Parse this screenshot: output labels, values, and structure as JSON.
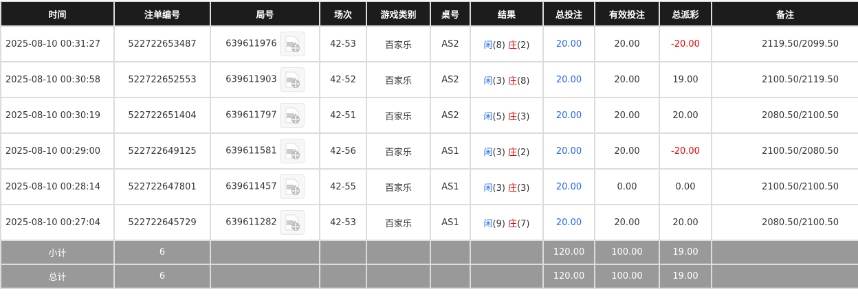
{
  "headers": [
    "时间",
    "注单编号",
    "局号",
    "场次",
    "游戏类别",
    "桌号",
    "结果",
    "总投注",
    "有效投注",
    "总派彩",
    "备注"
  ],
  "rows": [
    {
      "time": "2025-08-10 00:31:27",
      "order": "522722653487",
      "round": "639611976",
      "session": "42-53",
      "game": "百家乐",
      "table": "AS2",
      "player_label": "闲",
      "player": "(8)",
      "banker_label": "庄",
      "banker": "(2)",
      "bet": "20.00",
      "valid": "20.00",
      "payout": "-20.00",
      "payout_negative": true,
      "note": "2119.50/2099.50"
    },
    {
      "time": "2025-08-10 00:30:58",
      "order": "522722652553",
      "round": "639611903",
      "session": "42-52",
      "game": "百家乐",
      "table": "AS2",
      "player_label": "闲",
      "player": "(3)",
      "banker_label": "庄",
      "banker": "(8)",
      "bet": "20.00",
      "valid": "20.00",
      "payout": "19.00",
      "payout_negative": false,
      "note": "2100.50/2119.50"
    },
    {
      "time": "2025-08-10 00:30:19",
      "order": "522722651404",
      "round": "639611797",
      "session": "42-51",
      "game": "百家乐",
      "table": "AS2",
      "player_label": "闲",
      "player": "(5)",
      "banker_label": "庄",
      "banker": "(3)",
      "bet": "20.00",
      "valid": "20.00",
      "payout": "20.00",
      "payout_negative": false,
      "note": "2080.50/2100.50"
    },
    {
      "time": "2025-08-10 00:29:00",
      "order": "522722649125",
      "round": "639611581",
      "session": "42-56",
      "game": "百家乐",
      "table": "AS1",
      "player_label": "闲",
      "player": "(3)",
      "banker_label": "庄",
      "banker": "(2)",
      "bet": "20.00",
      "valid": "20.00",
      "payout": "-20.00",
      "payout_negative": true,
      "note": "2100.50/2080.50"
    },
    {
      "time": "2025-08-10 00:28:14",
      "order": "522722647801",
      "round": "639611457",
      "session": "42-55",
      "game": "百家乐",
      "table": "AS1",
      "player_label": "闲",
      "player": "(3)",
      "banker_label": "庄",
      "banker": "(3)",
      "bet": "20.00",
      "valid": "0.00",
      "payout": "0.00",
      "payout_negative": false,
      "note": "2100.50/2100.50"
    },
    {
      "time": "2025-08-10 00:27:04",
      "order": "522722645729",
      "round": "639611282",
      "session": "42-53",
      "game": "百家乐",
      "table": "AS1",
      "player_label": "闲",
      "player": "(9)",
      "banker_label": "庄",
      "banker": "(7)",
      "bet": "20.00",
      "valid": "20.00",
      "payout": "20.00",
      "payout_negative": false,
      "note": "2080.50/2100.50"
    }
  ],
  "subtotal": {
    "label": "小计",
    "count": "6",
    "bet": "120.00",
    "valid": "100.00",
    "payout": "19.00"
  },
  "total": {
    "label": "总计",
    "count": "6",
    "bet": "120.00",
    "valid": "100.00",
    "payout": "19.00"
  },
  "colors": {
    "header_bg": "#1c1c1c",
    "sum_bg": "#999999",
    "blue": "#2266ee",
    "red": "#ee0000"
  },
  "icons": {
    "replay": "video-replay-icon"
  }
}
